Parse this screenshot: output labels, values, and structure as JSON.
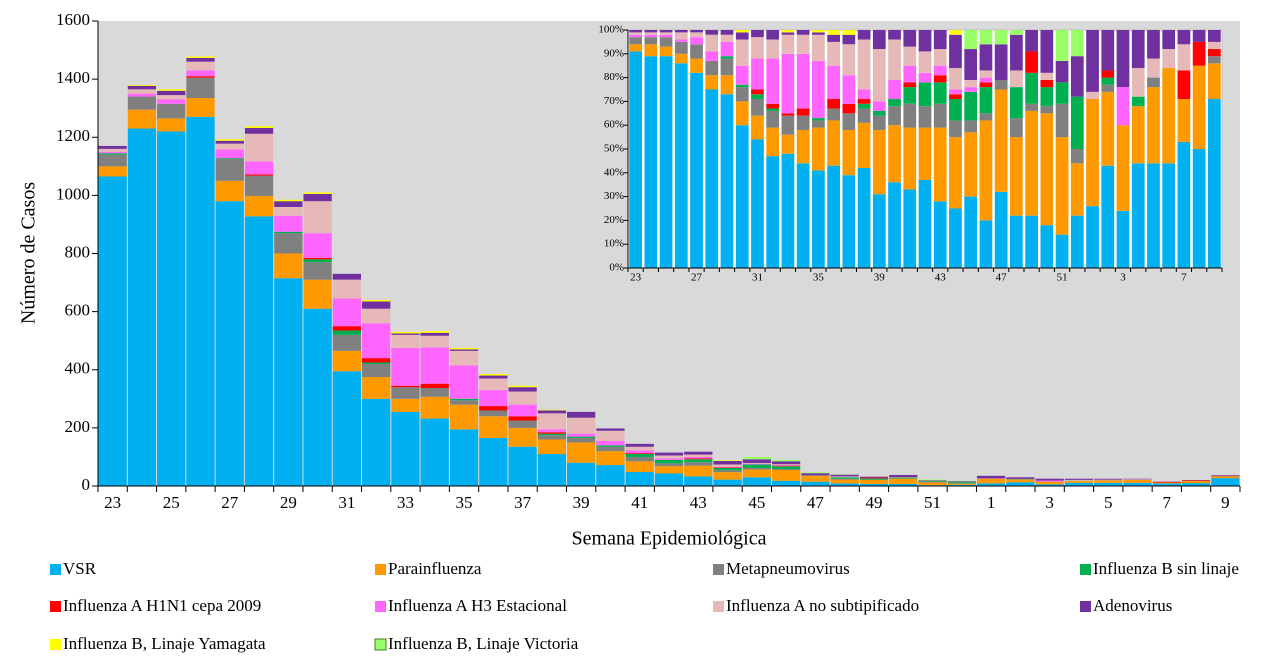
{
  "charts": [
    {
      "type": "bar",
      "stacked": true,
      "y_label": "Número de Casos",
      "x_label": "Semana Epidemiológica",
      "categories": [
        "23",
        null,
        "25",
        null,
        "27",
        null,
        "29",
        null,
        "31",
        null,
        "33",
        null,
        "35",
        null,
        "37",
        null,
        "39",
        null,
        "41",
        null,
        "43",
        null,
        "45",
        null,
        "47",
        null,
        "49",
        null,
        "51",
        null,
        "1",
        null,
        "3",
        null,
        "5",
        null,
        "7",
        null,
        "9"
      ],
      "ylim": [
        0,
        1600
      ],
      "yticks": [
        0,
        200,
        400,
        600,
        800,
        1000,
        1200,
        1400,
        1600
      ],
      "series": [
        {
          "name": "VSR",
          "color": "#00b0f0",
          "values": [
            1065,
            1230,
            1220,
            1270,
            980,
            928,
            715,
            610,
            395,
            300,
            255,
            232,
            195,
            165,
            135,
            110,
            80,
            72,
            48,
            43,
            33,
            22,
            30,
            18,
            15,
            9,
            7,
            7,
            3,
            4,
            9,
            13,
            6,
            11,
            11,
            11,
            9,
            10,
            27
          ]
        },
        {
          "name": "Parainfluenza",
          "color": "#ff9900",
          "values": [
            35,
            65,
            45,
            65,
            70,
            70,
            85,
            100,
            70,
            75,
            45,
            75,
            85,
            75,
            65,
            50,
            70,
            48,
            37,
            25,
            37,
            26,
            27,
            37,
            20,
            13,
            14,
            18,
            9,
            4,
            16,
            9,
            9,
            6,
            8,
            10,
            3,
            7,
            6
          ]
        },
        {
          "name": "Metapneumovirus",
          "color": "#808080",
          "values": [
            40,
            45,
            50,
            70,
            75,
            70,
            70,
            60,
            55,
            45,
            40,
            30,
            15,
            20,
            25,
            15,
            15,
            15,
            15,
            10,
            12,
            6,
            5,
            3,
            2,
            3,
            1,
            1,
            3,
            1,
            0,
            1,
            0,
            0,
            1,
            0,
            0,
            0,
            1
          ]
        },
        {
          "name": "Influenza B sin linaje",
          "color": "#00b050",
          "values": [
            5,
            0,
            0,
            0,
            3,
            0,
            5,
            10,
            15,
            5,
            0,
            0,
            5,
            0,
            0,
            5,
            5,
            5,
            10,
            12,
            10,
            8,
            12,
            10,
            0,
            5,
            4,
            3,
            2,
            4,
            0,
            1,
            0,
            1,
            0,
            0,
            0,
            0,
            0
          ]
        },
        {
          "name": "Influenza A H1N1 cepa 2009",
          "color": "#ff0000",
          "values": [
            0,
            0,
            0,
            5,
            0,
            4,
            0,
            5,
            15,
            15,
            5,
            15,
            0,
            15,
            15,
            5,
            0,
            0,
            3,
            0,
            3,
            2,
            0,
            2,
            0,
            0,
            3,
            1,
            0,
            0,
            0,
            1,
            0,
            0,
            0,
            0,
            2,
            2,
            1
          ]
        },
        {
          "name": "Influenza A H3 Estacional",
          "color": "#ff66ff",
          "values": [
            5,
            10,
            15,
            20,
            30,
            45,
            55,
            85,
            95,
            120,
            130,
            125,
            115,
            55,
            40,
            10,
            10,
            15,
            10,
            5,
            5,
            2,
            2,
            2,
            0,
            0,
            0,
            0,
            0,
            0,
            0,
            0,
            4,
            0,
            0,
            0,
            0,
            0,
            0
          ]
        },
        {
          "name": "Influenza A no subtipificado",
          "color": "#e6b9b8",
          "values": [
            10,
            15,
            15,
            30,
            20,
            95,
            30,
            110,
            65,
            50,
            45,
            40,
            50,
            40,
            45,
            55,
            55,
            35,
            12,
            10,
            8,
            8,
            3,
            3,
            0,
            3,
            0,
            1,
            0,
            0,
            1,
            0,
            0,
            3,
            2,
            2,
            2,
            0,
            1
          ]
        },
        {
          "name": "Adenovirus",
          "color": "#7030a0",
          "values": [
            10,
            12,
            15,
            13,
            10,
            20,
            20,
            25,
            20,
            25,
            5,
            10,
            5,
            10,
            15,
            10,
            20,
            8,
            10,
            10,
            10,
            12,
            13,
            10,
            7,
            6,
            3,
            7,
            2,
            3,
            9,
            5,
            6,
            4,
            3,
            2,
            1,
            1,
            2
          ]
        },
        {
          "name": "Influenza B, Linaje Yamagata",
          "color": "#ffff00",
          "values": [
            0,
            3,
            5,
            5,
            5,
            6,
            5,
            5,
            0,
            5,
            5,
            6,
            5,
            5,
            5,
            2,
            0,
            0,
            0,
            0,
            0,
            2,
            0,
            0,
            0,
            0,
            0,
            0,
            0,
            0,
            0,
            0,
            0,
            0,
            0,
            0,
            0,
            0,
            0
          ]
        },
        {
          "name": "Influenza B, Linaje Victoria",
          "color": "#99ff66",
          "values": [
            0,
            0,
            0,
            0,
            0,
            0,
            0,
            0,
            0,
            0,
            0,
            0,
            0,
            0,
            0,
            0,
            0,
            0,
            0,
            0,
            0,
            0,
            8,
            5,
            3,
            1,
            0,
            0,
            3,
            2,
            0,
            0,
            0,
            0,
            0,
            0,
            0,
            0,
            0
          ]
        }
      ]
    },
    {
      "type": "bar",
      "stacked": true,
      "categories": [
        "23",
        null,
        null,
        null,
        "27",
        null,
        null,
        null,
        "31",
        null,
        null,
        null,
        "35",
        null,
        null,
        null,
        "39",
        null,
        null,
        null,
        "43",
        null,
        null,
        null,
        "47",
        null,
        null,
        null,
        "51",
        null,
        null,
        null,
        "3",
        null,
        null,
        null,
        "7",
        null,
        null
      ],
      "ylim": [
        0,
        100
      ],
      "yticks": [
        {
          "value": 0,
          "label": "0%"
        },
        {
          "value": 10,
          "label": "10%"
        },
        {
          "value": 20,
          "label": "20%"
        },
        {
          "value": 30,
          "label": "30%"
        },
        {
          "value": 40,
          "label": "40%"
        },
        {
          "value": 50,
          "label": "50%"
        },
        {
          "value": 60,
          "label": "60%"
        },
        {
          "value": 70,
          "label": "70%"
        },
        {
          "value": 80,
          "label": "80%"
        },
        {
          "value": 90,
          "label": "90%"
        },
        {
          "value": 100,
          "label": "100%"
        }
      ],
      "series": [
        {
          "color": "#00b0f0",
          "values": [
            91,
            89,
            89,
            86,
            82,
            75,
            73,
            60,
            54,
            47,
            48,
            44,
            41,
            43,
            39,
            42,
            31,
            36,
            33,
            37,
            28,
            25,
            30,
            20,
            32,
            22,
            22,
            18,
            14,
            22,
            26,
            43,
            24,
            44,
            44,
            44,
            53,
            50,
            71
          ]
        },
        {
          "color": "#ff9900",
          "values": [
            3,
            5,
            4,
            4,
            6,
            6,
            8,
            10,
            10,
            12,
            8,
            14,
            18,
            19,
            19,
            19,
            27,
            24,
            26,
            22,
            31,
            30,
            27,
            42,
            43,
            33,
            44,
            47,
            41,
            22,
            45,
            31,
            36,
            24,
            32,
            40,
            18,
            35,
            15
          ]
        },
        {
          "color": "#808080",
          "values": [
            3,
            3,
            4,
            5,
            6,
            6,
            7,
            6,
            7,
            7,
            8,
            6,
            3,
            5,
            7,
            6,
            6,
            8,
            10,
            9,
            10,
            7,
            5,
            3,
            4,
            8,
            3,
            3,
            14,
            6,
            0,
            3,
            0,
            0,
            4,
            0,
            0,
            0,
            3
          ]
        },
        {
          "color": "#00b050",
          "values": [
            0,
            0,
            0,
            0,
            0,
            0,
            1,
            1,
            2,
            1,
            0,
            0,
            1,
            0,
            0,
            2,
            2,
            3,
            7,
            10,
            9,
            9,
            12,
            11,
            0,
            13,
            13,
            8,
            9,
            22,
            0,
            3,
            0,
            4,
            0,
            0,
            0,
            0,
            0
          ]
        },
        {
          "color": "#ff0000",
          "values": [
            0,
            0,
            0,
            0,
            0,
            0,
            0,
            0,
            2,
            2,
            1,
            3,
            0,
            4,
            4,
            2,
            0,
            0,
            2,
            0,
            3,
            2,
            0,
            2,
            0,
            0,
            9,
            3,
            0,
            0,
            0,
            3,
            0,
            0,
            0,
            0,
            12,
            10,
            3
          ]
        },
        {
          "color": "#ff66ff",
          "values": [
            1,
            1,
            1,
            1,
            3,
            4,
            6,
            8,
            13,
            19,
            25,
            23,
            24,
            14,
            12,
            4,
            4,
            8,
            7,
            4,
            4,
            2,
            2,
            2,
            0,
            0,
            0,
            0,
            0,
            0,
            0,
            0,
            16,
            0,
            0,
            0,
            0,
            0,
            0
          ]
        },
        {
          "color": "#e6b9b8",
          "values": [
            1,
            1,
            1,
            3,
            2,
            7,
            3,
            11,
            9,
            8,
            8,
            8,
            11,
            10,
            13,
            21,
            22,
            17,
            8,
            9,
            7,
            9,
            3,
            3,
            0,
            7,
            0,
            3,
            0,
            0,
            3,
            0,
            0,
            12,
            8,
            8,
            11,
            0,
            3
          ]
        },
        {
          "color": "#7030a0",
          "values": [
            1,
            1,
            1,
            1,
            1,
            2,
            2,
            3,
            3,
            4,
            1,
            2,
            1,
            3,
            4,
            4,
            8,
            4,
            7,
            9,
            8,
            14,
            13,
            11,
            15,
            15,
            9,
            18,
            9,
            17,
            26,
            17,
            24,
            16,
            12,
            8,
            6,
            5,
            5
          ]
        },
        {
          "color": "#ffff00",
          "values": [
            0,
            0,
            0,
            0,
            0,
            0,
            0,
            1,
            0,
            0,
            1,
            0,
            1,
            2,
            2,
            0,
            0,
            0,
            0,
            0,
            0,
            2,
            0,
            0,
            0,
            0,
            0,
            0,
            0,
            0,
            0,
            0,
            0,
            0,
            0,
            0,
            0,
            0,
            0
          ]
        },
        {
          "color": "#99ff66",
          "values": [
            0,
            0,
            0,
            0,
            0,
            0,
            0,
            0,
            0,
            0,
            0,
            0,
            0,
            0,
            0,
            0,
            0,
            0,
            0,
            0,
            0,
            0,
            8,
            6,
            6,
            2,
            0,
            0,
            13,
            11,
            0,
            0,
            0,
            0,
            0,
            0,
            0,
            0,
            0
          ]
        }
      ]
    }
  ]
}
